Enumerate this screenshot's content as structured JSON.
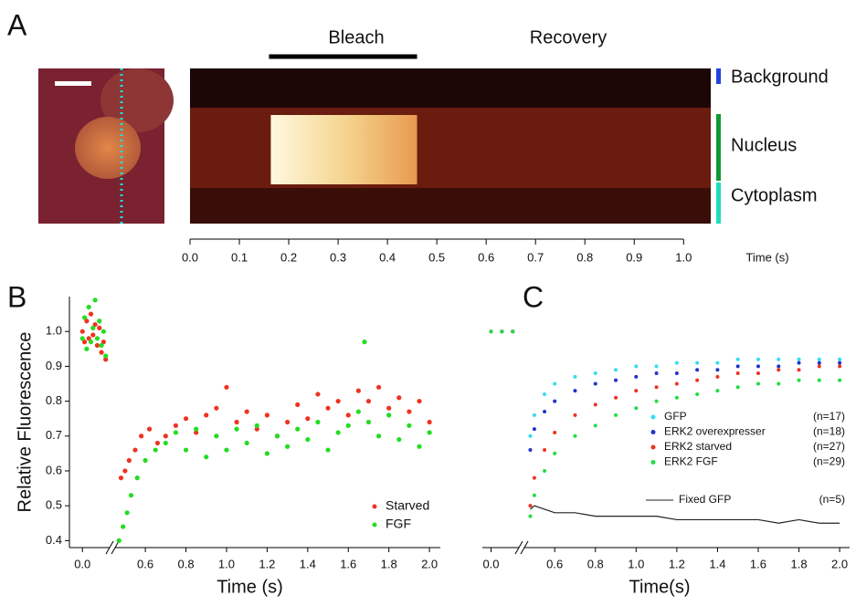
{
  "panel_labels": [
    "A",
    "B",
    "C"
  ],
  "panel_a": {
    "bleach_label": "Bleach",
    "recovery_label": "Recovery",
    "x_label": "Time (s)",
    "xlim": [
      0,
      1.055
    ],
    "xticks": [
      {
        "value": 0,
        "label": "0.0"
      },
      0.1,
      0.2,
      0.3,
      0.4,
      0.5,
      0.6,
      0.7,
      0.8,
      0.9,
      {
        "value": 1,
        "label": "1.0"
      }
    ],
    "bleach": [
      0.16,
      0.46
    ],
    "regions": [
      {
        "label": "Background",
        "color": "#2244dd"
      },
      {
        "label": "Nucleus",
        "color": "#119933"
      },
      {
        "label": "Cytoplasm",
        "color": "#22ddbb"
      }
    ]
  },
  "chart_data": [
    {
      "type": "scatter",
      "ylabel": "Relative Fluorescence",
      "xlabel": "Time (s)",
      "xlim": [
        -0.04,
        2.04
      ],
      "x_break": [
        0.12,
        0.46
      ],
      "ylim": [
        0.38,
        1.1
      ],
      "xticks": [
        {
          "value": 0,
          "label": "0.0"
        },
        0.6,
        0.8,
        {
          "value": 1,
          "label": "1.0"
        },
        1.2,
        1.4,
        1.6,
        1.8,
        {
          "value": 2,
          "label": "2.0"
        }
      ],
      "yticks": [
        0.4,
        0.5,
        0.6,
        0.7,
        0.8,
        0.9,
        {
          "value": 1,
          "label": "1.0"
        }
      ],
      "legend": "lower right",
      "series": [
        {
          "name": "Starved",
          "color": "#ee3322",
          "x": [
            0.0,
            0.01,
            0.02,
            0.03,
            0.04,
            0.05,
            0.06,
            0.07,
            0.08,
            0.09,
            0.1,
            0.11,
            0.48,
            0.5,
            0.52,
            0.55,
            0.58,
            0.62,
            0.66,
            0.7,
            0.75,
            0.8,
            0.85,
            0.9,
            0.95,
            1.0,
            1.05,
            1.1,
            1.15,
            1.2,
            1.25,
            1.3,
            1.35,
            1.4,
            1.45,
            1.5,
            1.55,
            1.6,
            1.65,
            1.7,
            1.75,
            1.8,
            1.85,
            1.9,
            1.95,
            2.0
          ],
          "values": [
            1.0,
            0.97,
            1.03,
            0.98,
            1.05,
            0.99,
            1.02,
            0.96,
            1.01,
            0.94,
            0.97,
            0.92,
            0.58,
            0.6,
            0.63,
            0.66,
            0.7,
            0.72,
            0.68,
            0.7,
            0.73,
            0.75,
            0.71,
            0.76,
            0.78,
            0.84,
            0.74,
            0.77,
            0.72,
            0.76,
            0.7,
            0.74,
            0.79,
            0.75,
            0.82,
            0.78,
            0.8,
            0.76,
            0.83,
            0.8,
            0.84,
            0.78,
            0.81,
            0.77,
            0.8,
            0.74
          ]
        },
        {
          "name": "FGF",
          "color": "#22dd22",
          "x": [
            0.0,
            0.01,
            0.02,
            0.03,
            0.04,
            0.05,
            0.06,
            0.07,
            0.08,
            0.09,
            0.1,
            0.11,
            0.47,
            0.49,
            0.51,
            0.53,
            0.56,
            0.6,
            0.65,
            0.7,
            0.75,
            0.8,
            0.85,
            0.9,
            0.95,
            1.0,
            1.05,
            1.1,
            1.15,
            1.2,
            1.25,
            1.3,
            1.35,
            1.4,
            1.45,
            1.5,
            1.55,
            1.6,
            1.65,
            1.68,
            1.7,
            1.75,
            1.8,
            1.85,
            1.9,
            1.95,
            2.0
          ],
          "values": [
            0.98,
            1.04,
            0.95,
            1.07,
            0.97,
            1.01,
            1.09,
            0.98,
            1.03,
            0.96,
            1.0,
            0.93,
            0.4,
            0.44,
            0.48,
            0.53,
            0.58,
            0.63,
            0.66,
            0.68,
            0.71,
            0.66,
            0.72,
            0.64,
            0.7,
            0.66,
            0.72,
            0.68,
            0.73,
            0.65,
            0.7,
            0.67,
            0.72,
            0.69,
            0.74,
            0.66,
            0.71,
            0.73,
            0.77,
            0.97,
            0.74,
            0.7,
            0.76,
            0.69,
            0.73,
            0.67,
            0.71
          ]
        }
      ]
    },
    {
      "type": "scatter",
      "xlabel": "Time(s)",
      "xlim": [
        -0.04,
        2.04
      ],
      "x_break": [
        0.12,
        0.46
      ],
      "ylim": [
        0.38,
        1.1
      ],
      "xticks": [
        {
          "value": 0,
          "label": "0.0"
        },
        0.6,
        0.8,
        {
          "value": 1,
          "label": "1.0"
        },
        1.2,
        1.4,
        1.6,
        1.8,
        {
          "value": 2,
          "label": "2.0"
        }
      ],
      "legend": "lower right",
      "x": [
        0.0,
        0.05,
        0.1,
        0.48,
        0.5,
        0.55,
        0.6,
        0.7,
        0.8,
        0.9,
        1.0,
        1.1,
        1.2,
        1.3,
        1.4,
        1.5,
        1.6,
        1.7,
        1.8,
        1.9,
        2.0
      ],
      "series": [
        {
          "name": "GFP",
          "n": "(n=17)",
          "color": "#33ddee",
          "values": [
            1.0,
            1.0,
            1.0,
            0.7,
            0.76,
            0.82,
            0.85,
            0.87,
            0.88,
            0.89,
            0.9,
            0.9,
            0.91,
            0.91,
            0.91,
            0.92,
            0.92,
            0.92,
            0.92,
            0.92,
            0.92
          ]
        },
        {
          "name": "ERK2 overexpresser",
          "n": "(n=18)",
          "color": "#2233cc",
          "values": [
            1.0,
            1.0,
            1.0,
            0.66,
            0.72,
            0.77,
            0.8,
            0.83,
            0.85,
            0.86,
            0.87,
            0.88,
            0.88,
            0.89,
            0.89,
            0.9,
            0.9,
            0.9,
            0.91,
            0.91,
            0.91
          ]
        },
        {
          "name": "ERK2 starved",
          "n": "(n=27)",
          "color": "#ee3322",
          "values": [
            1.0,
            1.0,
            1.0,
            0.5,
            0.58,
            0.66,
            0.71,
            0.76,
            0.79,
            0.81,
            0.83,
            0.84,
            0.85,
            0.86,
            0.87,
            0.88,
            0.88,
            0.89,
            0.89,
            0.9,
            0.9
          ]
        },
        {
          "name": "ERK2 FGF",
          "n": "(n=29)",
          "color": "#22dd44",
          "values": [
            1.0,
            1.0,
            1.0,
            0.47,
            0.53,
            0.6,
            0.65,
            0.7,
            0.73,
            0.76,
            0.78,
            0.8,
            0.81,
            0.82,
            0.83,
            0.84,
            0.85,
            0.85,
            0.86,
            0.86,
            0.86
          ]
        },
        {
          "name": "Fixed GFP",
          "n": "(n=5)",
          "color": "#222222",
          "mode": "line",
          "values": [
            null,
            null,
            null,
            0.49,
            0.5,
            0.49,
            0.48,
            0.48,
            0.47,
            0.47,
            0.47,
            0.47,
            0.46,
            0.46,
            0.46,
            0.46,
            0.46,
            0.45,
            0.46,
            0.45,
            0.45
          ]
        }
      ]
    }
  ]
}
